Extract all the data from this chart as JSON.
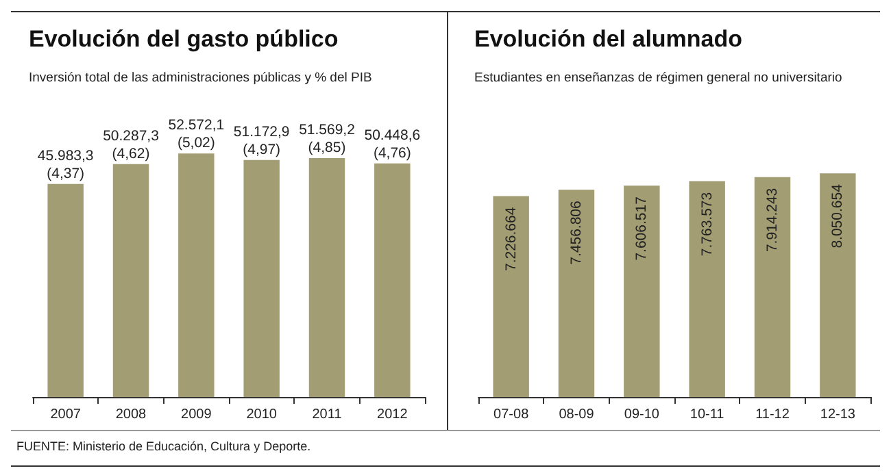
{
  "chart_data": [
    {
      "type": "bar",
      "title": "Evolución del gasto público",
      "subtitle": "Inversión total de las administraciones públicas y % del PIB",
      "categories": [
        "2007",
        "2008",
        "2009",
        "2010",
        "2011",
        "2012"
      ],
      "values": [
        45983.3,
        50287.3,
        52572.1,
        51172.9,
        51569.2,
        50448.6
      ],
      "value_labels": [
        "45.983,3\n(4,37)",
        "50.287,3\n(4,62)",
        "52.572,1\n(5,02)",
        "51.172,9\n(4,97)",
        "51.569,2\n(4,85)",
        "50.448,6\n(4,76)"
      ],
      "color": "#a39d74",
      "tick_labels": "x",
      "annotations": [
        "FUENTE: Ministerio de Educación, Cultura y Deporte."
      ]
    },
    {
      "type": "bar",
      "title": "Evolución del alumnado",
      "subtitle": "Estudiantes en enseñanzas de régimen general no universitario",
      "categories": [
        "07-08",
        "08-09",
        "09-10",
        "10-11",
        "11-12",
        "12-13"
      ],
      "values": [
        7226664,
        7456806,
        7606517,
        7763573,
        7914243,
        8050654
      ],
      "value_labels": [
        "7.226.664",
        "7.456.806",
        "7.606.517",
        "7.763.573",
        "7.914.243",
        "8.050.654"
      ],
      "color": "#a39d74",
      "tick_labels": "x"
    }
  ]
}
